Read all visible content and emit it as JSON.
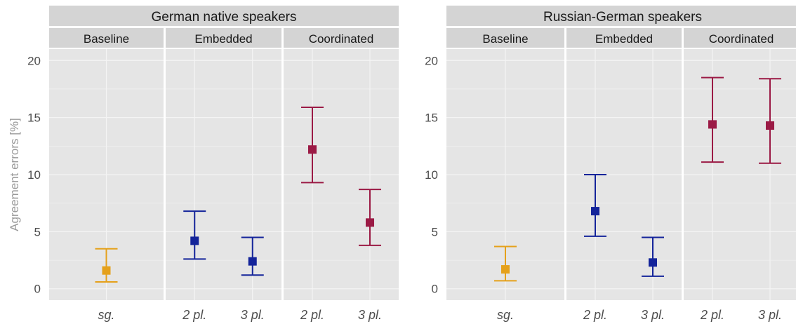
{
  "chart_data": [
    {
      "type": "errorbar",
      "title": "German native speakers",
      "ylabel": "Agreement errors [%]",
      "ylim": [
        -1,
        21
      ],
      "yticks": [
        0,
        5,
        10,
        15,
        20
      ],
      "grid": true,
      "panels": [
        {
          "label": "Baseline",
          "points": [
            {
              "x": "sg.",
              "y": 1.6,
              "lo": 0.6,
              "hi": 3.5,
              "color": "#e5a11b"
            }
          ]
        },
        {
          "label": "Embedded",
          "points": [
            {
              "x": "2 pl.",
              "y": 4.2,
              "lo": 2.6,
              "hi": 6.8,
              "color": "#14249a"
            },
            {
              "x": "3 pl.",
              "y": 2.4,
              "lo": 1.2,
              "hi": 4.5,
              "color": "#14249a"
            }
          ]
        },
        {
          "label": "Coordinated",
          "points": [
            {
              "x": "2 pl.",
              "y": 12.2,
              "lo": 9.3,
              "hi": 15.9,
              "color": "#9b1a45"
            },
            {
              "x": "3 pl.",
              "y": 5.8,
              "lo": 3.8,
              "hi": 8.7,
              "color": "#9b1a45"
            }
          ]
        }
      ]
    },
    {
      "type": "errorbar",
      "title": "Russian-German speakers",
      "ylabel": "",
      "ylim": [
        -1,
        21
      ],
      "yticks": [
        0,
        5,
        10,
        15,
        20
      ],
      "grid": true,
      "panels": [
        {
          "label": "Baseline",
          "points": [
            {
              "x": "sg.",
              "y": 1.7,
              "lo": 0.7,
              "hi": 3.7,
              "color": "#e5a11b"
            }
          ]
        },
        {
          "label": "Embedded",
          "points": [
            {
              "x": "2 pl.",
              "y": 6.8,
              "lo": 4.6,
              "hi": 10.0,
              "color": "#14249a"
            },
            {
              "x": "3 pl.",
              "y": 2.3,
              "lo": 1.1,
              "hi": 4.5,
              "color": "#14249a"
            }
          ]
        },
        {
          "label": "Coordinated",
          "points": [
            {
              "x": "2 pl.",
              "y": 14.4,
              "lo": 11.1,
              "hi": 18.5,
              "color": "#9b1a45"
            },
            {
              "x": "3 pl.",
              "y": 14.3,
              "lo": 11.0,
              "hi": 18.4,
              "color": "#9b1a45"
            }
          ]
        }
      ]
    }
  ],
  "colors": {
    "panel_background": "#e5e5e5",
    "strip_background": "#d4d4d4",
    "grid": "#f4f4f4",
    "axis_text": "#4d4d4d",
    "axis_title": "#9a9a9a"
  }
}
